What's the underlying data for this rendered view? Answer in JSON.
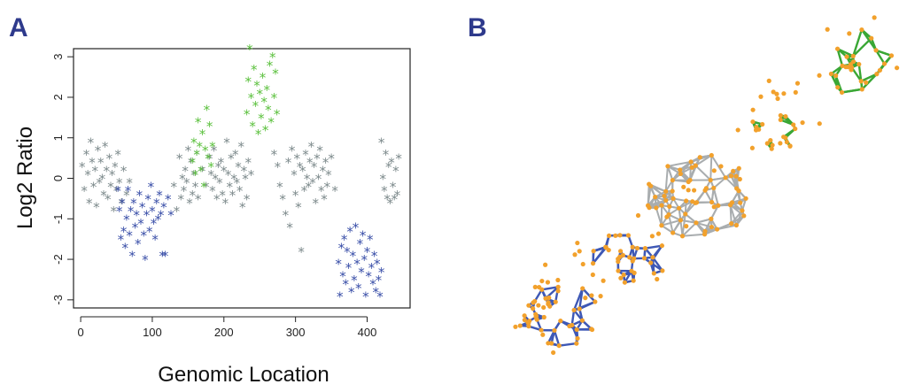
{
  "panels": {
    "a_label": "A",
    "b_label": "B"
  },
  "colors": {
    "gray": "#7d8a8c",
    "blue": "#3a4fa8",
    "green": "#5cc13e",
    "node": "#f2a12c",
    "edge_gray": "#a9adaf",
    "edge_blue": "#3e58b5",
    "edge_green": "#3aa735"
  },
  "chart_data": [
    {
      "type": "scatter",
      "panel": "A",
      "xlabel": "Genomic Location",
      "ylabel": "Log2 Ratio",
      "xlim": [
        -10,
        460
      ],
      "ylim": [
        -3.2,
        3.2
      ],
      "xticks": [
        0,
        100,
        200,
        300,
        400
      ],
      "yticks": [
        -3,
        -2,
        -1,
        0,
        1,
        2,
        3
      ],
      "marker": "*",
      "grid": false,
      "legend": "none",
      "series": [
        {
          "color": "gray",
          "points": [
            [
              2,
              0.3
            ],
            [
              5,
              -0.3
            ],
            [
              8,
              0.6
            ],
            [
              10,
              0.1
            ],
            [
              12,
              -0.6
            ],
            [
              14,
              0.9
            ],
            [
              16,
              0.4
            ],
            [
              18,
              -0.2
            ],
            [
              20,
              0.2
            ],
            [
              22,
              -0.7
            ],
            [
              24,
              0.7
            ],
            [
              26,
              -0.1
            ],
            [
              28,
              0.4
            ],
            [
              30,
              0.0
            ],
            [
              32,
              -0.4
            ],
            [
              34,
              0.8
            ],
            [
              36,
              0.2
            ],
            [
              38,
              -0.5
            ],
            [
              40,
              0.5
            ],
            [
              42,
              -0.2
            ],
            [
              44,
              0.1
            ],
            [
              46,
              -0.8
            ],
            [
              48,
              0.3
            ],
            [
              50,
              -0.3
            ],
            [
              52,
              0.6
            ],
            [
              54,
              -0.1
            ],
            [
              57,
              -0.6
            ],
            [
              60,
              0.2
            ],
            [
              64,
              -0.4
            ],
            [
              68,
              -0.1
            ],
            [
              130,
              -0.2
            ],
            [
              134,
              -0.8
            ],
            [
              138,
              0.5
            ],
            [
              140,
              -0.5
            ],
            [
              142,
              0.0
            ],
            [
              144,
              -0.3
            ],
            [
              146,
              0.2
            ],
            [
              148,
              -0.1
            ],
            [
              150,
              0.7
            ],
            [
              152,
              -0.6
            ],
            [
              154,
              0.4
            ],
            [
              156,
              -0.4
            ],
            [
              158,
              0.1
            ],
            [
              160,
              -0.2
            ],
            [
              162,
              0.6
            ],
            [
              164,
              -0.5
            ],
            [
              170,
              0.2
            ],
            [
              175,
              -0.2
            ],
            [
              180,
              0.5
            ],
            [
              182,
              0.1
            ],
            [
              184,
              -0.3
            ],
            [
              186,
              0.7
            ],
            [
              188,
              0.0
            ],
            [
              190,
              -0.5
            ],
            [
              192,
              0.3
            ],
            [
              194,
              -0.1
            ],
            [
              196,
              0.4
            ],
            [
              198,
              -0.4
            ],
            [
              200,
              0.2
            ],
            [
              202,
              -0.6
            ],
            [
              204,
              0.9
            ],
            [
              206,
              0.1
            ],
            [
              208,
              -0.2
            ],
            [
              210,
              0.5
            ],
            [
              212,
              -0.4
            ],
            [
              214,
              0.0
            ],
            [
              216,
              0.6
            ],
            [
              218,
              -0.1
            ],
            [
              220,
              0.3
            ],
            [
              222,
              -0.3
            ],
            [
              224,
              0.8
            ],
            [
              226,
              -0.7
            ],
            [
              228,
              0.2
            ],
            [
              230,
              0.0
            ],
            [
              232,
              -0.5
            ],
            [
              234,
              0.4
            ],
            [
              238,
              0.1
            ],
            [
              270,
              0.6
            ],
            [
              275,
              0.3
            ],
            [
              278,
              -0.2
            ],
            [
              282,
              -0.5
            ],
            [
              286,
              -0.9
            ],
            [
              290,
              0.4
            ],
            [
              292,
              -1.2
            ],
            [
              295,
              0.7
            ],
            [
              298,
              0.1
            ],
            [
              300,
              -0.4
            ],
            [
              302,
              0.5
            ],
            [
              304,
              -0.7
            ],
            [
              306,
              0.3
            ],
            [
              308,
              -1.8
            ],
            [
              310,
              0.2
            ],
            [
              312,
              -0.3
            ],
            [
              314,
              0.6
            ],
            [
              316,
              0.0
            ],
            [
              318,
              -0.2
            ],
            [
              320,
              0.4
            ],
            [
              322,
              0.8
            ],
            [
              324,
              -0.1
            ],
            [
              326,
              0.3
            ],
            [
              328,
              -0.6
            ],
            [
              330,
              0.5
            ],
            [
              332,
              0.0
            ],
            [
              334,
              0.7
            ],
            [
              336,
              -0.3
            ],
            [
              338,
              0.2
            ],
            [
              340,
              -0.5
            ],
            [
              342,
              0.4
            ],
            [
              344,
              -0.2
            ],
            [
              346,
              0.1
            ],
            [
              350,
              0.5
            ],
            [
              355,
              -0.3
            ],
            [
              420,
              0.9
            ],
            [
              422,
              0.0
            ],
            [
              424,
              -0.3
            ],
            [
              426,
              0.6
            ],
            [
              428,
              -0.5
            ],
            [
              430,
              0.3
            ],
            [
              432,
              -0.6
            ],
            [
              434,
              0.4
            ],
            [
              436,
              -0.2
            ],
            [
              438,
              -0.5
            ],
            [
              440,
              0.2
            ],
            [
              442,
              -0.4
            ],
            [
              444,
              0.5
            ]
          ]
        },
        {
          "color": "blue",
          "points": [
            [
              52,
              -0.3
            ],
            [
              54,
              -0.8
            ],
            [
              56,
              -1.5
            ],
            [
              58,
              -0.6
            ],
            [
              60,
              -1.3
            ],
            [
              62,
              -1.7
            ],
            [
              64,
              -1.0
            ],
            [
              66,
              -0.3
            ],
            [
              68,
              -1.4
            ],
            [
              70,
              -0.8
            ],
            [
              72,
              -1.9
            ],
            [
              74,
              -0.6
            ],
            [
              76,
              -1.2
            ],
            [
              78,
              -0.9
            ],
            [
              80,
              -1.6
            ],
            [
              82,
              -0.4
            ],
            [
              84,
              -1.1
            ],
            [
              86,
              -0.7
            ],
            [
              88,
              -1.4
            ],
            [
              90,
              -2.0
            ],
            [
              92,
              -0.9
            ],
            [
              94,
              -0.5
            ],
            [
              96,
              -1.3
            ],
            [
              98,
              -0.2
            ],
            [
              100,
              -0.8
            ],
            [
              102,
              -1.1
            ],
            [
              104,
              -1.5
            ],
            [
              106,
              -0.6
            ],
            [
              108,
              -1.0
            ],
            [
              110,
              -0.4
            ],
            [
              112,
              -0.9
            ],
            [
              114,
              -1.9
            ],
            [
              116,
              -0.7
            ],
            [
              118,
              -1.9
            ],
            [
              122,
              -0.5
            ],
            [
              126,
              -0.9
            ],
            [
              360,
              -2.1
            ],
            [
              362,
              -2.9
            ],
            [
              364,
              -1.7
            ],
            [
              366,
              -2.4
            ],
            [
              368,
              -1.5
            ],
            [
              370,
              -2.6
            ],
            [
              372,
              -1.8
            ],
            [
              374,
              -2.2
            ],
            [
              376,
              -1.3
            ],
            [
              378,
              -2.8
            ],
            [
              380,
              -1.9
            ],
            [
              382,
              -2.5
            ],
            [
              384,
              -1.2
            ],
            [
              386,
              -2.1
            ],
            [
              388,
              -2.7
            ],
            [
              390,
              -1.6
            ],
            [
              392,
              -2.3
            ],
            [
              394,
              -1.4
            ],
            [
              396,
              -2.0
            ],
            [
              398,
              -2.9
            ],
            [
              400,
              -1.8
            ],
            [
              402,
              -2.4
            ],
            [
              404,
              -1.5
            ],
            [
              406,
              -2.2
            ],
            [
              408,
              -2.6
            ],
            [
              410,
              -1.9
            ],
            [
              412,
              -2.8
            ],
            [
              414,
              -2.1
            ],
            [
              416,
              -2.5
            ],
            [
              418,
              -2.9
            ],
            [
              420,
              -2.3
            ]
          ]
        },
        {
          "color": "green",
          "points": [
            [
              156,
              0.4
            ],
            [
              158,
              0.9
            ],
            [
              160,
              0.1
            ],
            [
              162,
              0.6
            ],
            [
              164,
              1.4
            ],
            [
              166,
              0.8
            ],
            [
              168,
              0.2
            ],
            [
              170,
              1.1
            ],
            [
              172,
              -0.2
            ],
            [
              174,
              0.7
            ],
            [
              176,
              1.7
            ],
            [
              178,
              0.5
            ],
            [
              180,
              1.3
            ],
            [
              182,
              0.3
            ],
            [
              184,
              0.8
            ],
            [
              232,
              1.6
            ],
            [
              234,
              2.4
            ],
            [
              236,
              3.2
            ],
            [
              238,
              2.0
            ],
            [
              240,
              1.3
            ],
            [
              242,
              2.7
            ],
            [
              244,
              1.8
            ],
            [
              246,
              2.3
            ],
            [
              248,
              1.1
            ],
            [
              250,
              2.1
            ],
            [
              252,
              1.5
            ],
            [
              254,
              2.5
            ],
            [
              256,
              1.9
            ],
            [
              258,
              1.2
            ],
            [
              260,
              2.2
            ],
            [
              262,
              1.7
            ],
            [
              264,
              2.8
            ],
            [
              266,
              1.4
            ],
            [
              268,
              3.0
            ],
            [
              270,
              2.0
            ],
            [
              272,
              2.6
            ],
            [
              274,
              1.6
            ]
          ]
        }
      ]
    },
    {
      "type": "network",
      "panel": "B",
      "clusters": [
        {
          "color": "blue",
          "nodes": 38,
          "center": "lower-left"
        },
        {
          "color": "blue",
          "nodes": 30,
          "center": "left"
        },
        {
          "color": "gray",
          "nodes": 60,
          "center": "middle"
        },
        {
          "color": "green",
          "nodes": 18,
          "center": "upper-middle"
        },
        {
          "color": "green",
          "nodes": 22,
          "center": "upper-right"
        }
      ],
      "node_color": "orange"
    }
  ]
}
